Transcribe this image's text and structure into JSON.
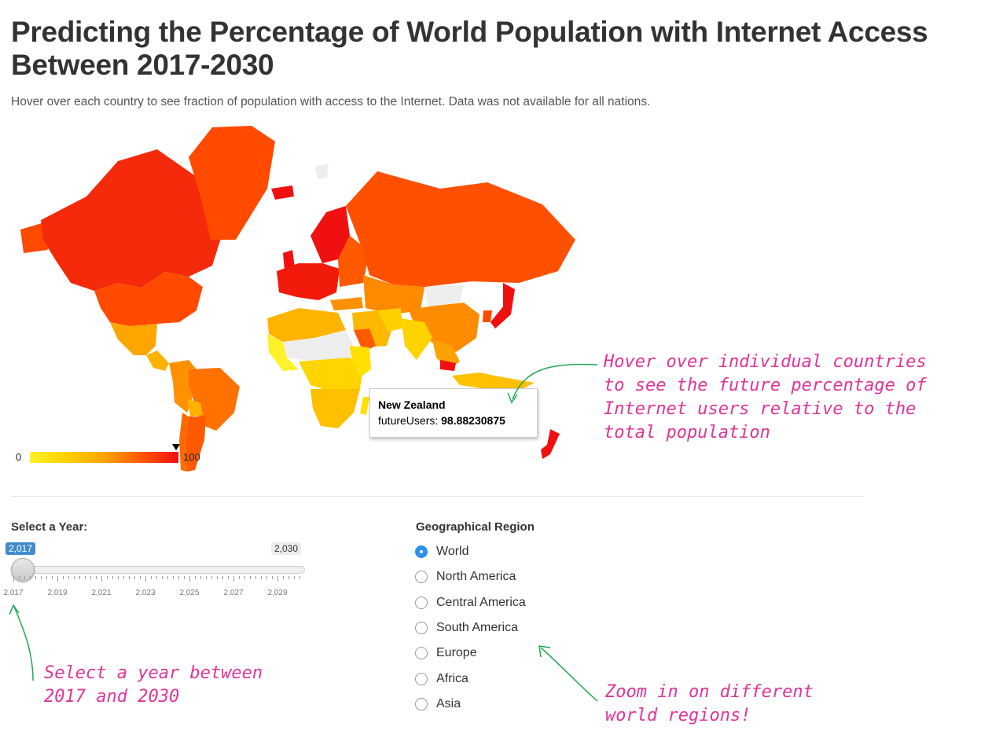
{
  "page": {
    "title": "Predicting the Percentage of World Population with Internet Access Between 2017-2030",
    "subtitle": "Hover over each country to see fraction of population with access to the Internet. Data was not available for all nations."
  },
  "map": {
    "legend_min": "0",
    "legend_max": "100",
    "scale_colors": [
      "#fff12a",
      "#ffd400",
      "#ffa500",
      "#ff5a00",
      "#f01010"
    ],
    "no_data_color": "#eeeeee",
    "legend_marker_value": 98.88230875,
    "tooltip": {
      "country": "New Zealand",
      "label": "futureUsers:",
      "value": "98.88230875"
    }
  },
  "year_slider": {
    "label": "Select a Year:",
    "value": "2,017",
    "max_label": "2,030",
    "min": 2017,
    "max": 2030,
    "current": 2017,
    "tick_labels": [
      "2,017",
      "2,019",
      "2,021",
      "2,023",
      "2,025",
      "2,027",
      "2,029"
    ]
  },
  "region": {
    "label": "Geographical Region",
    "options": [
      "World",
      "North America",
      "Central America",
      "South America",
      "Europe",
      "Africa",
      "Asia"
    ],
    "selected": "World"
  },
  "annotations": {
    "hover_note": "Hover over individual countries\nto see the future percentage of\nInternet users relative to the\ntotal population",
    "year_note": "Select a year between\n2017 and 2030",
    "region_note": "Zoom in on different\nworld regions!"
  }
}
